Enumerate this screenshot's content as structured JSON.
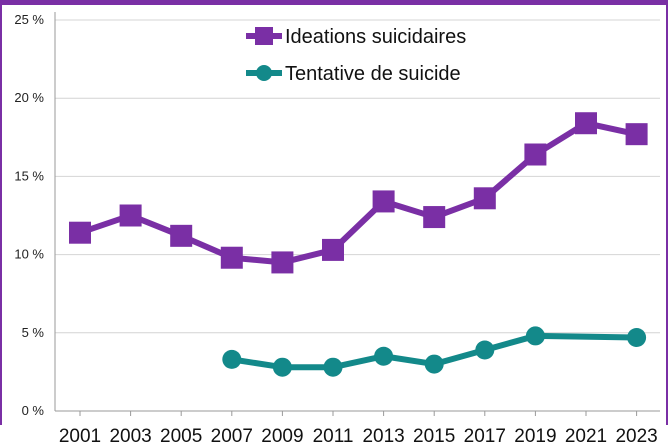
{
  "chart_data": {
    "type": "line",
    "title": "",
    "xlabel": "",
    "ylabel": "",
    "categories": [
      "2001",
      "2003",
      "2005",
      "2007",
      "2009",
      "2011",
      "2013",
      "2015",
      "2017",
      "2019",
      "2021",
      "2023"
    ],
    "y_ticks": [
      "0 %",
      "5 %",
      "10 %",
      "15 %",
      "20 %",
      "25 %"
    ],
    "ylim": [
      0,
      25
    ],
    "grid": "horizontal",
    "legend_position": "top",
    "series": [
      {
        "name": "Ideations suicidaires",
        "color": "#7a2fa5",
        "marker": "square",
        "values": [
          11.4,
          12.5,
          11.2,
          9.8,
          9.5,
          10.3,
          13.4,
          12.4,
          13.6,
          16.4,
          18.4,
          17.7
        ]
      },
      {
        "name": "Tentative de suicide",
        "color": "#13898a",
        "marker": "circle",
        "values": [
          null,
          null,
          null,
          3.3,
          2.8,
          2.8,
          3.5,
          3.0,
          3.9,
          4.8,
          null,
          4.7
        ]
      }
    ]
  }
}
